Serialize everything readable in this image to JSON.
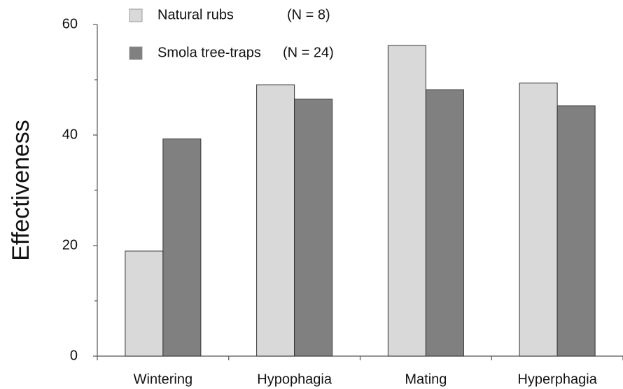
{
  "chart_data": {
    "type": "bar",
    "ylabel": "Effectiveness",
    "categories": [
      "Wintering",
      "Hypophagia",
      "Mating",
      "Hyperphagia"
    ],
    "series": [
      {
        "name": "Natural rubs",
        "sample": "(N = 8)",
        "color": "#d9d9d9",
        "values": [
          19,
          49.1,
          56.2,
          49.4
        ]
      },
      {
        "name": "Smola tree-traps",
        "sample": "(N = 24)",
        "color": "#808080",
        "values": [
          39.3,
          46.5,
          48.2,
          45.3
        ]
      }
    ],
    "ylim": [
      0,
      60
    ],
    "yticks": [
      0,
      20,
      40,
      60
    ],
    "minor_yticks": [
      10,
      30,
      50
    ],
    "grid": false,
    "legend": "top-left"
  }
}
